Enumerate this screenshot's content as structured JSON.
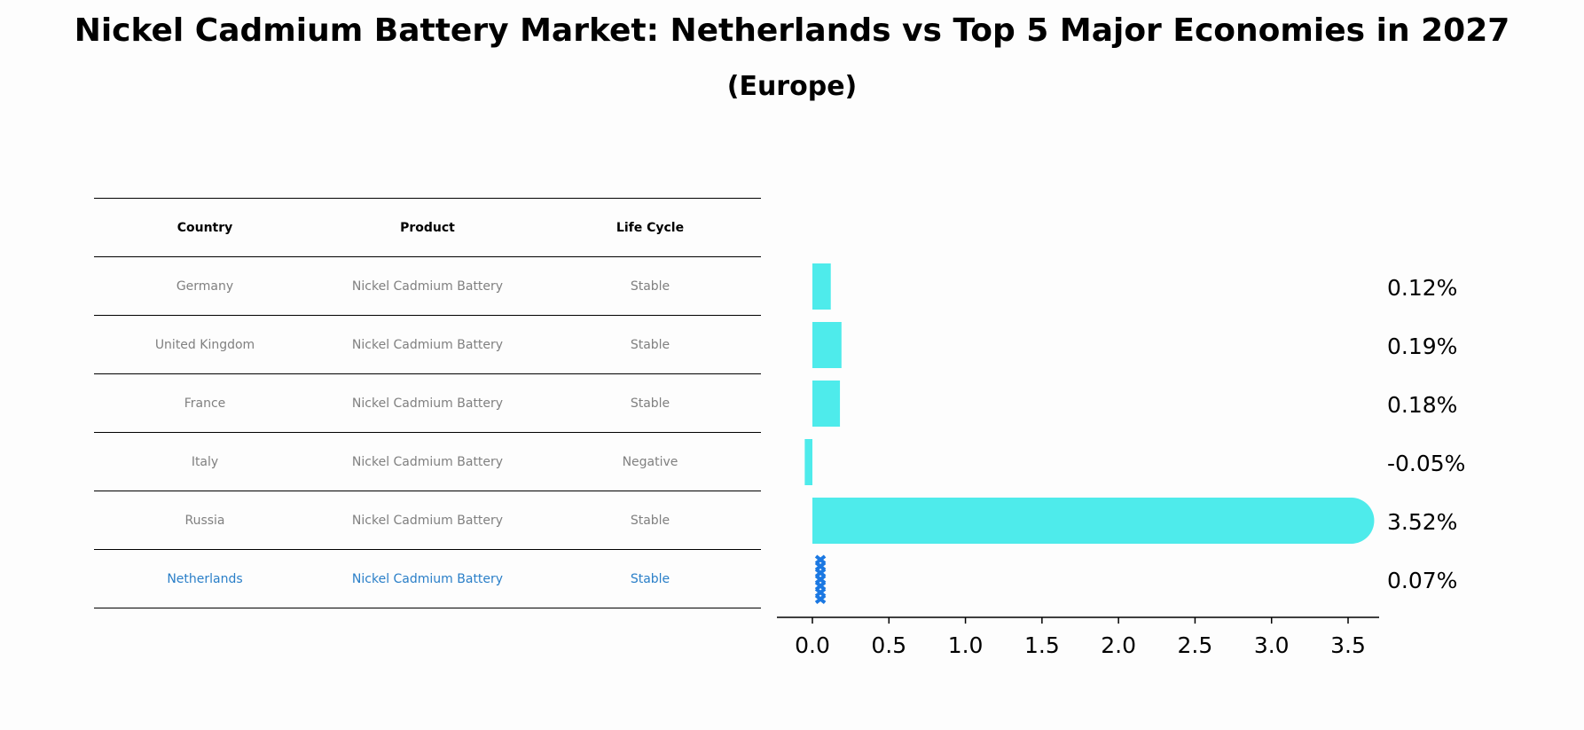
{
  "title": "Nickel Cadmium Battery Market: Netherlands vs Top 5 Major Economies in 2027",
  "subtitle": "(Europe)",
  "table": {
    "headers": [
      "Country",
      "Product",
      "Life Cycle"
    ],
    "rows": [
      {
        "country": "Germany",
        "product": "Nickel Cadmium Battery",
        "life_cycle": "Stable"
      },
      {
        "country": "United Kingdom",
        "product": "Nickel Cadmium Battery",
        "life_cycle": "Stable"
      },
      {
        "country": "France",
        "product": "Nickel Cadmium Battery",
        "life_cycle": "Stable"
      },
      {
        "country": "Italy",
        "product": "Nickel Cadmium Battery",
        "life_cycle": "Negative"
      },
      {
        "country": "Russia",
        "product": "Nickel Cadmium Battery",
        "life_cycle": "Stable"
      },
      {
        "country": "Netherlands",
        "product": "Nickel Cadmium Battery",
        "life_cycle": "Stable"
      }
    ]
  },
  "chart_data": {
    "type": "bar",
    "orientation": "horizontal",
    "categories": [
      "Germany",
      "United Kingdom",
      "France",
      "Italy",
      "Russia",
      "Netherlands"
    ],
    "values": [
      0.12,
      0.19,
      0.18,
      -0.05,
      3.52,
      0.07
    ],
    "value_labels": [
      "0.12%",
      "0.19%",
      "0.18%",
      "-0.05%",
      "3.52%",
      "0.07%"
    ],
    "highlight": "Netherlands",
    "xlim": [
      -0.23,
      3.7
    ],
    "xticks": [
      0.0,
      0.5,
      1.0,
      1.5,
      2.0,
      2.5,
      3.0,
      3.5
    ],
    "xtick_labels": [
      "0.0",
      "0.5",
      "1.0",
      "1.5",
      "2.0",
      "2.5",
      "3.0",
      "3.5"
    ],
    "colors": {
      "bar": "#4eebeb",
      "highlight": "#1b78e2",
      "axis": "#000000"
    }
  }
}
